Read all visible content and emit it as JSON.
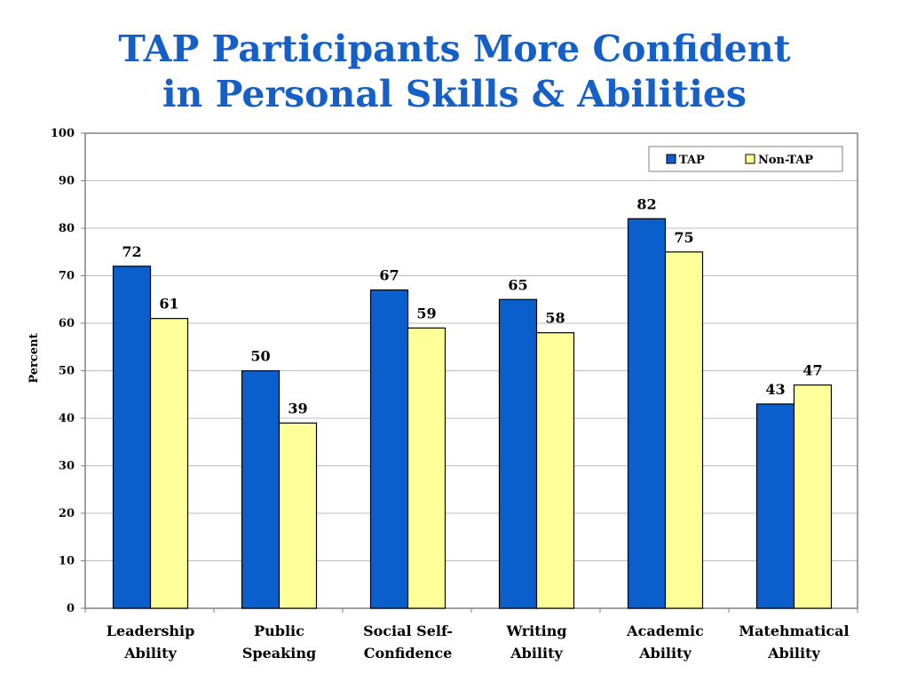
{
  "chart_data": {
    "type": "bar",
    "title_lines": [
      "TAP Participants More Confident",
      "in Personal Skills & Abilities"
    ],
    "ylabel": "Percent",
    "xlabel": "",
    "ylim": [
      0,
      100
    ],
    "yticks": [
      0,
      10,
      20,
      30,
      40,
      50,
      60,
      70,
      80,
      90,
      100
    ],
    "grid": true,
    "legend_position": "top-right",
    "categories": [
      [
        "Leadership",
        "Ability"
      ],
      [
        "Public",
        "Speaking"
      ],
      [
        "Social Self-",
        "Confidence"
      ],
      [
        "Writing",
        "Ability"
      ],
      [
        "Academic",
        "Ability"
      ],
      [
        "Matehmatical",
        "Ability"
      ]
    ],
    "series": [
      {
        "name": "TAP",
        "color": "#0a5fcc",
        "values": [
          72,
          50,
          67,
          65,
          82,
          43
        ],
        "labels": [
          "72",
          "50",
          "67",
          "65",
          "82",
          "43"
        ]
      },
      {
        "name": "Non-TAP",
        "color": "#ffff99",
        "values": [
          61,
          39,
          59,
          58,
          75,
          47
        ],
        "labels": [
          "61",
          "39",
          "59",
          "58",
          "75",
          "47"
        ]
      }
    ]
  }
}
